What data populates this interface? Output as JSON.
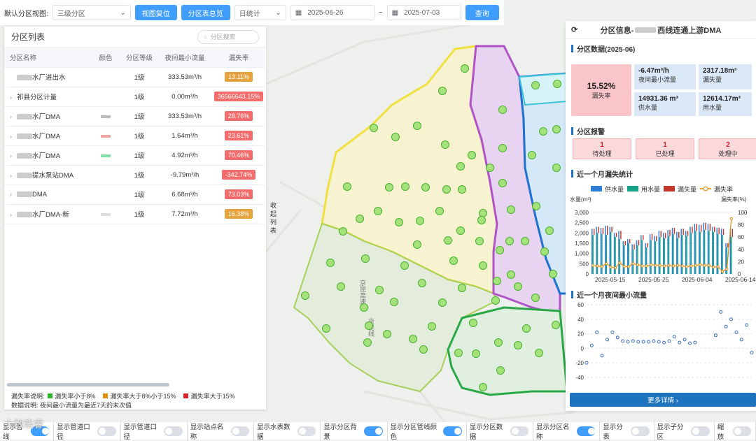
{
  "toolbar": {
    "view_label": "默认分区视图:",
    "level_value": "三级分区",
    "reset_btn": "视图复位",
    "summary_btn": "分区表总览",
    "stat_value": "日统计",
    "date_from": "2025-06-26",
    "date_sep": "~",
    "date_to": "2025-07-03",
    "query_btn": "查询"
  },
  "left_panel": {
    "title": "分区列表",
    "search_placeholder": "分区搜索",
    "columns": [
      "分区名称",
      "颜色",
      "分区等级",
      "夜间最小流量",
      "漏失率"
    ],
    "rows": [
      {
        "name": "水厂进出水",
        "level": "1级",
        "flow": "333.53m³/h",
        "rate": "13.11%",
        "rate_color": "#e6a23c"
      },
      {
        "name": "祁县分区计量",
        "level": "1级",
        "flow": "0.00m³/h",
        "rate": "36566643.15%",
        "rate_color": "#f56c6c"
      },
      {
        "name": "水厂DMA",
        "level": "1级",
        "flow": "333.53m³/h",
        "rate": "28.76%",
        "rate_color": "#f56c6c"
      },
      {
        "name": "水厂DMA",
        "level": "1级",
        "flow": "1.64m³/h",
        "rate": "23.61%",
        "rate_color": "#f56c6c"
      },
      {
        "name": "水厂DMA",
        "level": "1级",
        "flow": "4.92m³/h",
        "rate": "70.46%",
        "rate_color": "#f56c6c"
      },
      {
        "name": "提水泵站DMA",
        "level": "1级",
        "flow": "-9.79m³/h",
        "rate": "-342.74%",
        "rate_color": "#f56c6c"
      },
      {
        "name": "DMA",
        "level": "1级",
        "flow": "6.68m³/h",
        "rate": "73.03%",
        "rate_color": "#f56c6c"
      },
      {
        "name": "水厂DMA-新",
        "level": "1级",
        "flow": "7.72m³/h",
        "rate": "16.38%",
        "rate_color": "#e6a23c"
      }
    ],
    "legend_label": "漏失率说明:",
    "legend_items": [
      "漏失率小于8%",
      "漏失率大于8%小于15%",
      "漏失率大于15%"
    ],
    "data_note": "数据说明: 夜间最小流量为最近7天的末次值"
  },
  "collapse_label": "收起列表",
  "map": {
    "road1": "京昆高速",
    "road2": "京昆线",
    "road3": "胡家庄"
  },
  "right_panel": {
    "title_prefix": "分区信息-",
    "title_suffix": "西线连通上游DMA",
    "data_section": "分区数据(2025-06)",
    "leak_rate": "15.52%",
    "leak_rate_label": "漏失率",
    "stats": [
      {
        "v": "-6.47m³/h",
        "l": "夜间最小流量"
      },
      {
        "v": "2317.18m³",
        "l": "漏失量"
      },
      {
        "v": "14931.36 m³",
        "l": "供水量"
      },
      {
        "v": "12614.17m³",
        "l": "用水量"
      }
    ],
    "alarm_section": "分区报警",
    "alarms": [
      {
        "n": "1",
        "l": "待处理"
      },
      {
        "n": "1",
        "l": "已处理"
      },
      {
        "n": "2",
        "l": "处理中"
      }
    ],
    "leak_chart_title": "近一个月漏失统计",
    "night_chart_title": "近一个月夜间最小流量",
    "more_btn": "更多详情 ›"
  },
  "chart_data": [
    {
      "type": "bar",
      "title": "近一个月漏失统计",
      "ylabel": "水量(m³)",
      "y2label": "漏失率(%)",
      "ylim": [
        0,
        3000
      ],
      "y2lim": [
        0,
        100
      ],
      "yticks": [
        "3,000",
        "2,500",
        "2,000",
        "1,500",
        "1,000",
        "500",
        "0"
      ],
      "y2ticks": [
        "100",
        "80",
        "60",
        "40",
        "20",
        "0"
      ],
      "xticks": [
        "2025-05-15",
        "2025-05-25",
        "2025-06-04",
        "2025-06-14"
      ],
      "legend": [
        "供水量",
        "用水量",
        "漏失量",
        "漏失率"
      ],
      "colors": {
        "supply": "#2f7ed8",
        "use": "#17a589",
        "leak": "#c0392b",
        "rate": "#e08e0b"
      },
      "supply": [
        2200,
        2300,
        2250,
        2350,
        2300,
        2000,
        2100,
        1600,
        1700,
        1450,
        1650,
        1900,
        1500,
        1950,
        1850,
        2100,
        2000,
        2150,
        2250,
        2050,
        2200,
        2100,
        2300,
        2450,
        2400,
        2500,
        2450,
        2300,
        2250,
        2200,
        1500,
        2200
      ],
      "use": [
        1900,
        2000,
        1950,
        1900,
        2050,
        1800,
        1700,
        1400,
        1500,
        1200,
        1400,
        1650,
        1300,
        1650,
        1600,
        1800,
        1750,
        1850,
        1950,
        1750,
        1900,
        1850,
        2000,
        2100,
        2050,
        2150,
        2100,
        2050,
        1950,
        1900,
        1300,
        1800
      ],
      "rate": [
        14,
        13,
        12,
        17,
        11,
        10,
        18,
        12,
        12,
        17,
        15,
        13,
        13,
        15,
        14,
        14,
        13,
        14,
        13,
        14,
        13,
        12,
        13,
        14,
        15,
        14,
        14,
        11,
        12,
        4,
        8,
        90
      ]
    },
    {
      "type": "line",
      "title": "近一个月夜间最小流量",
      "ylim": [
        -40,
        60
      ],
      "yticks": [
        "60",
        "40",
        "20",
        "0",
        "-20",
        "-40"
      ],
      "values": [
        -20,
        4,
        22,
        -10,
        12,
        22,
        15,
        10,
        9,
        10,
        9,
        9,
        9,
        10,
        9,
        8,
        10,
        16,
        8,
        12,
        7,
        8,
        null,
        null,
        null,
        18,
        50,
        30,
        40,
        22,
        12,
        32,
        -6
      ]
    }
  ],
  "bottom": [
    {
      "label": "显示管线",
      "on": true
    },
    {
      "label": "显示管道口径",
      "on": false
    },
    {
      "label": "显示管道口径",
      "on": false
    },
    {
      "label": "显示站点名称",
      "on": false
    },
    {
      "label": "显示水表数据",
      "on": false
    },
    {
      "label": "显示分区背景",
      "on": true
    },
    {
      "label": "显示分区管线颜色",
      "on": true
    },
    {
      "label": "显示分区数据",
      "on": false
    },
    {
      "label": "显示分区名称",
      "on": true
    },
    {
      "label": "显示分表",
      "on": false
    },
    {
      "label": "显示子分区",
      "on": false
    },
    {
      "label": "缩放",
      "on": false
    }
  ],
  "watermark": "大数晓睿"
}
